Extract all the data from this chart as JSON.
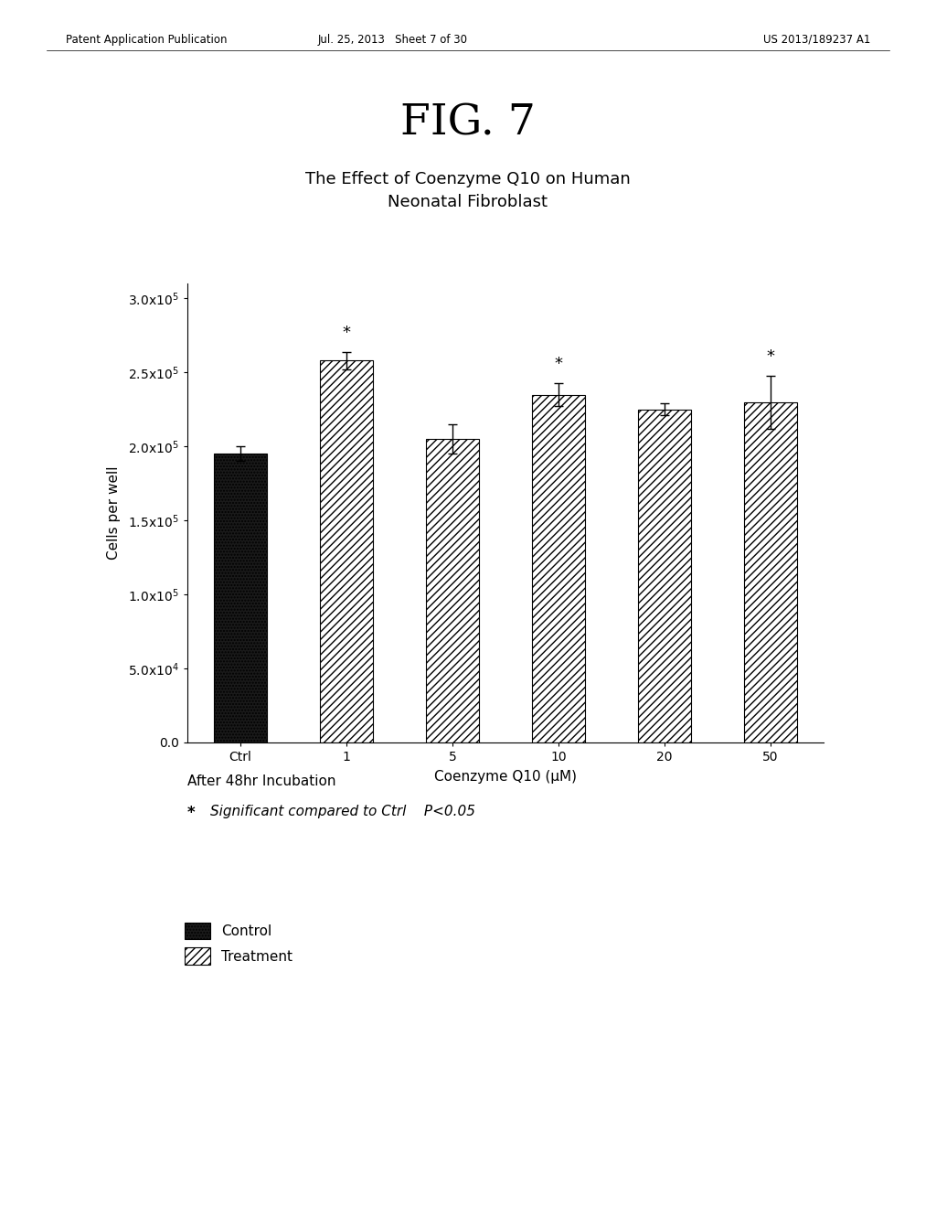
{
  "fig_label": "FIG. 7",
  "chart_title": "The Effect of Coenzyme Q10 on Human\nNeonatal Fibroblast",
  "xlabel": "Coenzyme Q10 (μM)",
  "ylabel": "Cells per well",
  "x_labels": [
    "Ctrl",
    "1",
    "5",
    "10",
    "20",
    "50"
  ],
  "bar_values": [
    195000,
    258000,
    205000,
    235000,
    225000,
    230000
  ],
  "bar_errors": [
    5000,
    6000,
    10000,
    8000,
    4000,
    18000
  ],
  "significant": [
    false,
    true,
    false,
    true,
    false,
    true
  ],
  "bar_types": [
    "control",
    "treatment",
    "treatment",
    "treatment",
    "treatment",
    "treatment"
  ],
  "ylim": [
    0,
    310000
  ],
  "yticks": [
    0,
    50000,
    100000,
    150000,
    200000,
    250000,
    300000
  ],
  "ytick_labels": [
    "0.0",
    "5.0x10$^4$",
    "1.0x10$^5$",
    "1.5x10$^5$",
    "2.0x10$^5$",
    "2.5x10$^5$",
    "3.0x10$^5$"
  ],
  "control_color": "#1a1a1a",
  "treatment_color": "white",
  "control_hatch": ".....",
  "treatment_hatch": "////",
  "annotation_text1": "After 48hr Incubation",
  "annotation_star": "*",
  "annotation_text2": "Significant compared to Ctrl    P<0.05",
  "legend_control": "Control",
  "legend_treatment": "Treatment",
  "header_left": "Patent Application Publication",
  "header_center": "Jul. 25, 2013   Sheet 7 of 30",
  "header_right": "US 2013/189237 A1",
  "background_color": "#ffffff",
  "fig_label_fontsize": 34,
  "chart_title_fontsize": 13,
  "axis_label_fontsize": 11,
  "tick_fontsize": 10,
  "annotation_fontsize": 11,
  "header_fontsize": 8.5
}
